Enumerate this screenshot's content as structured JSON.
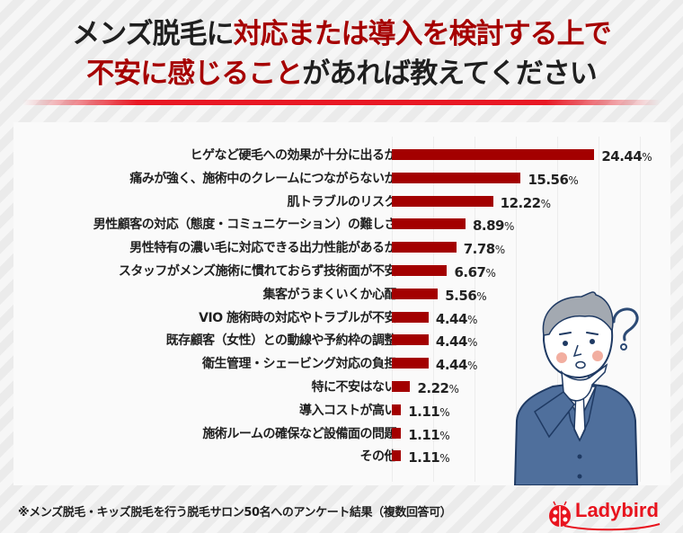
{
  "header": {
    "title_line1_black": "メンズ脱毛に",
    "title_line1_red": "対応または導入を検討する上で",
    "title_line2_red": "不安に感じることが",
    "title_line2_red_text": "不安に感じること",
    "title_line2_black": "があれば教えてください",
    "accent_color": "#a60000",
    "underline_color": "#e81824"
  },
  "chart_data": {
    "type": "bar",
    "orientation": "horizontal",
    "title": "メンズ脱毛に対応または導入を検討する上で不安に感じることがあれば教えてください",
    "xlabel": "",
    "ylabel": "",
    "unit": "%",
    "bar_color": "#a30000",
    "grid": true,
    "categories": [
      "ヒゲなど硬毛への効果が十分に出るか",
      "痛みが強く、施術中のクレームにつながらないか",
      "肌トラブルのリスク",
      "男性顧客の対応（態度・コミュニケーション）の難しさ",
      "男性特有の濃い毛に対応できる出力性能があるか",
      "スタッフがメンズ施術に慣れておらず技術面が不安",
      "集客がうまくいくか心配",
      "VIO 施術時の対応やトラブルが不安",
      "既存顧客（女性）との動線や予約枠の調整",
      "衛生管理・シェービング対応の負担",
      "特に不安はない",
      "導入コストが高い",
      "施術ルームの確保など設備面の問題",
      "その他"
    ],
    "values": [
      24.44,
      15.56,
      12.22,
      8.89,
      7.78,
      6.67,
      5.56,
      4.44,
      4.44,
      4.44,
      2.22,
      1.11,
      1.11,
      1.11
    ],
    "value_labels": [
      "24.44",
      "15.56",
      "12.22",
      "8.89",
      "7.78",
      "6.67",
      "5.56",
      "4.44",
      "4.44",
      "4.44",
      "2.22",
      "1.11",
      "1.11",
      "1.11"
    ],
    "xlim": [
      0,
      35
    ]
  },
  "footer": {
    "note": "※メンズ脱毛・キッズ脱毛を行う脱毛サロン50名へのアンケート結果（複数回答可）",
    "logo_text": "Ladybird",
    "logo_icon": "ladybug-icon"
  },
  "illustration": {
    "name": "thinking-businessman-illustration",
    "symbol": "?"
  }
}
